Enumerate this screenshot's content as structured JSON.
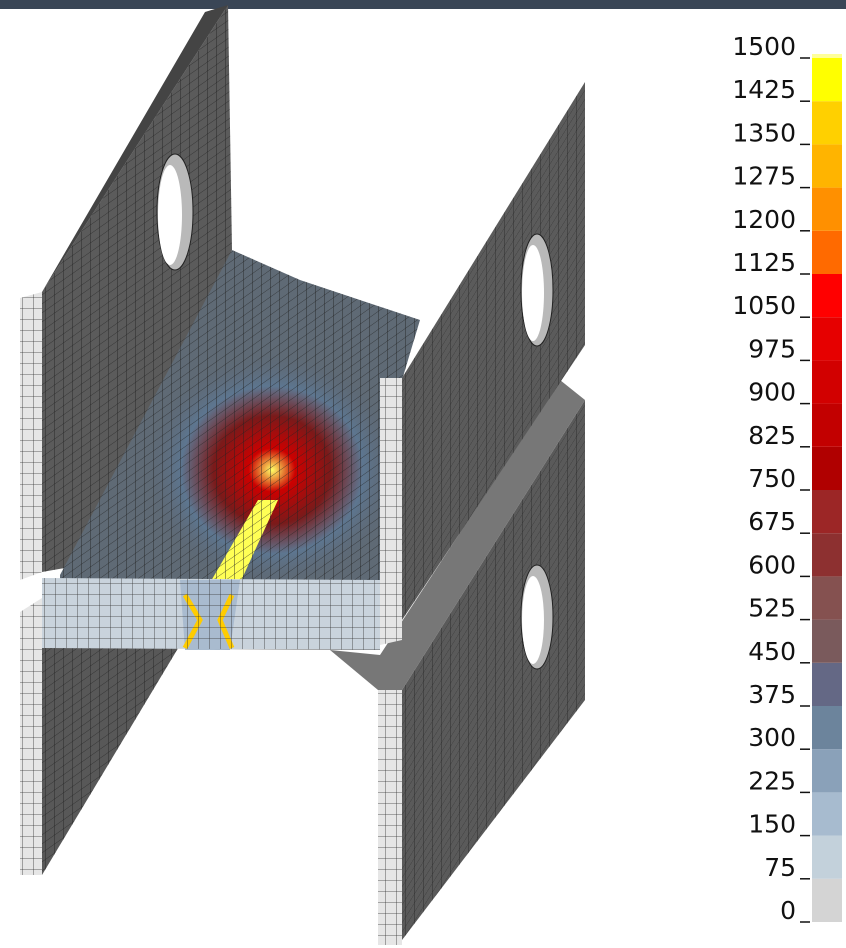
{
  "colorbar": {
    "ticks": [
      0,
      75,
      150,
      225,
      300,
      375,
      450,
      525,
      600,
      675,
      750,
      825,
      900,
      975,
      1050,
      1125,
      1200,
      1275,
      1350,
      1425,
      1500
    ],
    "colors": [
      "#d4d4d4",
      "#c3d1db",
      "#a7bbcf",
      "#8aa1b9",
      "#6c849c",
      "#646885",
      "#7a5a5c",
      "#855150",
      "#8d3030",
      "#9c2626",
      "#b00000",
      "#c20000",
      "#d20000",
      "#e60000",
      "#ff0000",
      "#ff6a00",
      "#ff9000",
      "#ffb400",
      "#ffd000",
      "#ffff00",
      "#ffff99"
    ]
  }
}
